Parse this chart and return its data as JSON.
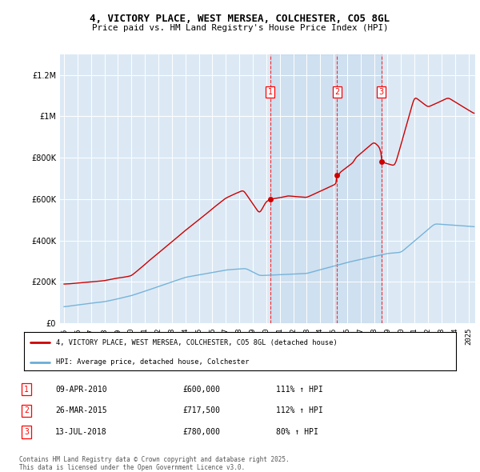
{
  "title_line1": "4, VICTORY PLACE, WEST MERSEA, COLCHESTER, CO5 8GL",
  "title_line2": "Price paid vs. HM Land Registry's House Price Index (HPI)",
  "hpi_color": "#6baed6",
  "price_color": "#cc0000",
  "background_color": "#dce9f5",
  "shade_color": "#c6d9f0",
  "sale_year_nums": [
    2010.292,
    2015.25,
    2018.542
  ],
  "sale_prices": [
    600000,
    717500,
    780000
  ],
  "sale_labels": [
    "1",
    "2",
    "3"
  ],
  "sale_pct": [
    "111% ↑ HPI",
    "112% ↑ HPI",
    "80% ↑ HPI"
  ],
  "sale_dates_display": [
    "09-APR-2010",
    "26-MAR-2015",
    "13-JUL-2018"
  ],
  "sale_prices_display": [
    "£600,000",
    "£717,500",
    "£780,000"
  ],
  "legend_label_red": "4, VICTORY PLACE, WEST MERSEA, COLCHESTER, CO5 8GL (detached house)",
  "legend_label_blue": "HPI: Average price, detached house, Colchester",
  "footnote": "Contains HM Land Registry data © Crown copyright and database right 2025.\nThis data is licensed under the Open Government Licence v3.0.",
  "ylim": [
    0,
    1300000
  ],
  "yticks": [
    0,
    200000,
    400000,
    600000,
    800000,
    1000000,
    1200000
  ],
  "xlim": [
    1994.7,
    2025.5
  ]
}
